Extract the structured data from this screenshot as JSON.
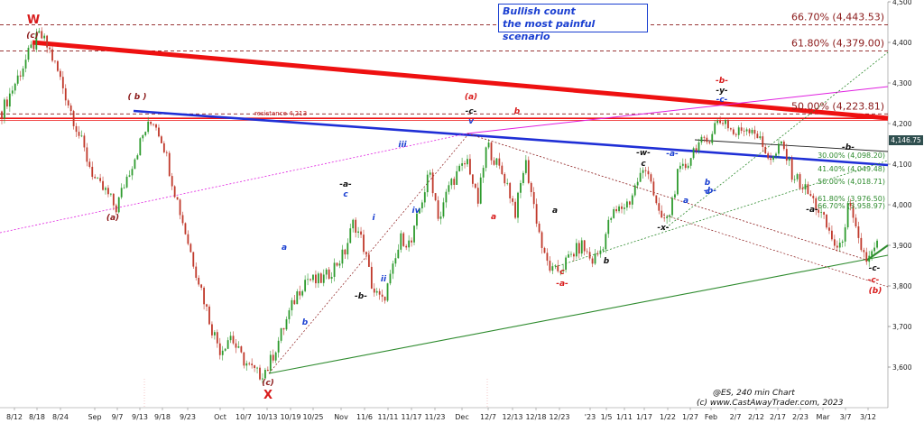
{
  "chart_data": {
    "type": "candlestick",
    "title": "Bullish count\nthe most painful scenario",
    "title_lines": [
      "Bullish count",
      "the most painful scenario"
    ],
    "footer_lines": [
      "@ES, 240 min Chart",
      "(c) www.CastAwayTrader.com, 2023"
    ],
    "price_current": "4,146.75",
    "ylim": [
      3500,
      4500
    ],
    "y_ticks": [
      {
        "value": 4500,
        "label": "4,500"
      },
      {
        "value": 4400,
        "label": "4,400"
      },
      {
        "value": 4300,
        "label": "4,300"
      },
      {
        "value": 4200,
        "label": "4,200"
      },
      {
        "value": 4100,
        "label": "4,100"
      },
      {
        "value": 4000,
        "label": "4,000"
      },
      {
        "value": 3900,
        "label": "3,900"
      },
      {
        "value": 3800,
        "label": "3,800"
      },
      {
        "value": 3700,
        "label": "3,700"
      },
      {
        "value": 3600,
        "label": "3,600"
      }
    ],
    "x_ticks": [
      "8/12",
      "8/18",
      "8/24",
      "Sep",
      "9/7",
      "9/13",
      "9/18",
      "9/23",
      "Oct",
      "10/7",
      "10/13",
      "10/19",
      "10/25",
      "Nov",
      "11/6",
      "11/11",
      "11/17",
      "11/23",
      "Dec",
      "12/7",
      "12/13",
      "12/18",
      "12/23",
      "'23",
      "1/5",
      "1/11",
      "1/17",
      "1/22",
      "1/27",
      "Feb",
      "2/7",
      "2/12",
      "2/17",
      "2/23",
      "Mar",
      "3/7",
      "3/12"
    ],
    "series": [
      {
        "name": "@ES 240 min",
        "values": [
          4230,
          4280,
          4330,
          4380,
          4420,
          4380,
          4320,
          4250,
          4180,
          4110,
          4050,
          4030,
          3990,
          4060,
          4120,
          4180,
          4210,
          4150,
          4050,
          3960,
          3870,
          3790,
          3700,
          3640,
          3680,
          3630,
          3600,
          3580,
          3600,
          3660,
          3720,
          3780,
          3820,
          3810,
          3820,
          3850,
          3880,
          3960,
          3900,
          3790,
          3760,
          3830,
          3920,
          3900,
          4000,
          4080,
          3960,
          4050,
          4080,
          4110,
          4000,
          4150,
          4100,
          4060,
          3980,
          4110,
          3990,
          3870,
          3830,
          3850,
          3880,
          3900,
          3860,
          3890,
          3970,
          3990,
          4010,
          4070,
          4090,
          3970,
          3960,
          4070,
          4100,
          4150,
          4150,
          4200,
          4210,
          4170,
          4190,
          4190,
          4140,
          4110,
          4150,
          4080,
          4050,
          4020,
          3980,
          3930,
          3880,
          4000,
          3910,
          3860,
          3900
        ]
      }
    ],
    "fib_levels": [
      {
        "label": "66.70% (4,443.53)",
        "value": 4443.53
      },
      {
        "label": "61.80% (4,379.00)",
        "value": 4379
      },
      {
        "label": "50.00% (4,223.81)",
        "value": 4223.81
      }
    ],
    "fib_small": [
      {
        "label": "30.00% (4,098.20)",
        "value": 4098.2
      },
      {
        "label": "41.40% (4,049.48)",
        "value": 4049.48
      },
      {
        "label": "50.00% (4,018.71)",
        "value": 4018.71
      },
      {
        "label": "61.80% (3,976.50)",
        "value": 3976.5
      },
      {
        "label": "66.70% (3,958.97)",
        "value": 3958.97
      }
    ],
    "resistance": {
      "label": "resistance 4,213",
      "value": 4213
    },
    "wave_labels": [
      {
        "text": "W",
        "color": "#d81b1b",
        "big": true
      },
      {
        "text": "(c)",
        "color": "#8b1a1a"
      },
      {
        "text": "( b )",
        "color": "#8b1a1a"
      },
      {
        "text": "(a)",
        "color": "#8b1a1a"
      },
      {
        "text": "(c)",
        "color": "#8b1a1a"
      },
      {
        "text": "X",
        "color": "#d81b1b",
        "big": true
      },
      {
        "text": "a",
        "color": "#1a3fd1"
      },
      {
        "text": "b",
        "color": "#1a3fd1"
      },
      {
        "text": "c",
        "color": "#1a3fd1"
      },
      {
        "text": "-a-",
        "color": "#111"
      },
      {
        "text": "-b-",
        "color": "#111"
      },
      {
        "text": "i",
        "color": "#1a3fd1"
      },
      {
        "text": "ii",
        "color": "#1a3fd1"
      },
      {
        "text": "iii",
        "color": "#1a3fd1"
      },
      {
        "text": "iv",
        "color": "#1a3fd1"
      },
      {
        "text": "v",
        "color": "#1a3fd1"
      },
      {
        "text": "-c-",
        "color": "#111"
      },
      {
        "text": "(a)",
        "color": "#d81b1b"
      },
      {
        "text": "a",
        "color": "#d81b1b"
      },
      {
        "text": "b",
        "color": "#d81b1b"
      },
      {
        "text": "c",
        "color": "#d81b1b"
      },
      {
        "text": "-a-",
        "color": "#d81b1b"
      },
      {
        "text": "a",
        "color": "#111"
      },
      {
        "text": "b",
        "color": "#111"
      },
      {
        "text": "-w-",
        "color": "#111"
      },
      {
        "text": "c",
        "color": "#111"
      },
      {
        "text": "-x-",
        "color": "#111"
      },
      {
        "text": "-a-",
        "color": "#1a3fd1"
      },
      {
        "text": "a",
        "color": "#1a3fd1"
      },
      {
        "text": "b",
        "color": "#1a3fd1"
      },
      {
        "text": "c",
        "color": "#1a3fd1"
      },
      {
        "text": "-b-",
        "color": "#1a3fd1"
      },
      {
        "text": "-b-",
        "color": "#d81b1b"
      },
      {
        "text": "-y-",
        "color": "#111"
      },
      {
        "text": "-c-",
        "color": "#1a3fd1"
      },
      {
        "text": "-b-",
        "color": "#111"
      },
      {
        "text": "-a-",
        "color": "#111"
      },
      {
        "text": "-c-",
        "color": "#111"
      },
      {
        "text": "-c-",
        "color": "#d81b1b"
      },
      {
        "text": "(b)",
        "color": "#d81b1b"
      }
    ],
    "colors": {
      "up": "#2e9b2e",
      "down": "#c0392b",
      "red_trend": "#ee1111",
      "blue_trend": "#1f2fd6",
      "green_trend": "#2e8b2e",
      "magenta": "#e020e0",
      "price_tag_bg": "#2f4f4f"
    },
    "grid": false,
    "legend": "none"
  }
}
